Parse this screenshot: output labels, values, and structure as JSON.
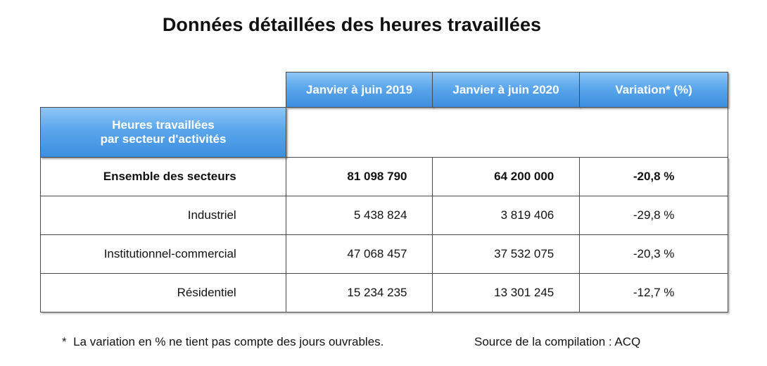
{
  "title": "Données détaillées des heures travaillées",
  "table": {
    "row_header": {
      "line1": "Heures travaillées",
      "line2": "par secteur d'activités"
    },
    "columns": [
      "Janvier à juin 2019",
      "Janvier à juin 2020",
      "Variation* (%)"
    ],
    "rows": [
      {
        "label": "Ensemble des secteurs",
        "v2019": "81 098 790",
        "v2020": "64 200 000",
        "variation": "-20,8 %"
      },
      {
        "label": "Industriel",
        "v2019": "5 438 824",
        "v2020": "3 819 406",
        "variation": "-29,8 %"
      },
      {
        "label": "Institutionnel-commercial",
        "v2019": "47 068 457",
        "v2020": "37 532 075",
        "variation": "-20,3 %"
      },
      {
        "label": "Résidentiel",
        "v2019": "15 234 235",
        "v2020": "13 301 245",
        "variation": "-12,7 %"
      }
    ]
  },
  "footnote": {
    "marker": "*",
    "text": "La variation en % ne tient pas compte des jours ouvrables.",
    "source": "Source de la compilation : ACQ"
  },
  "colors": {
    "header_gradient_top": "#8fc6f7",
    "header_gradient_bottom": "#3d8ee0",
    "border": "#4a4a4a"
  }
}
